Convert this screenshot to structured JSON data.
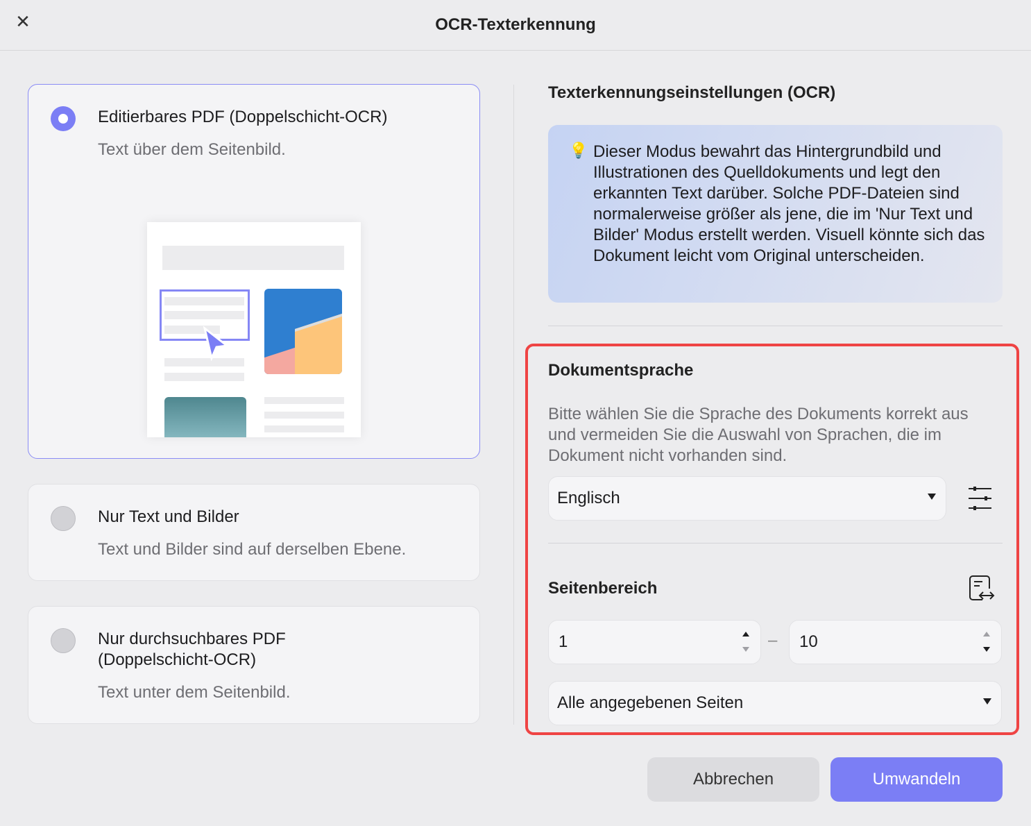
{
  "header": {
    "title": "OCR-Texterkennung",
    "close_icon": "close-icon"
  },
  "modes": [
    {
      "title": "Editierbares PDF (Doppelschicht-OCR)",
      "subtitle": "Text über dem Seitenbild.",
      "selected": true
    },
    {
      "title": "Nur Text und Bilder",
      "subtitle": "Text und Bilder sind auf derselben Ebene.",
      "selected": false
    },
    {
      "title": "Nur durchsuchbares PDF (Doppelschicht-OCR)",
      "subtitle": "Text unter dem Seitenbild.",
      "selected": false
    }
  ],
  "settings": {
    "heading": "Texterkennungseinstellungen (OCR)",
    "tip_icon": "lightbulb-icon",
    "tip": "Dieser Modus bewahrt das Hintergrundbild und Illustrationen des Quelldokuments und legt den erkannten Text darüber. Solche PDF-Dateien sind normalerweise größer als jene, die im 'Nur Text und Bilder' Modus erstellt werden. Visuell könnte sich das Dokument leicht vom Original unterscheiden.",
    "language": {
      "heading": "Dokumentsprache",
      "hint": "Bitte wählen Sie die Sprache des Dokuments korrekt aus und vermeiden Sie die Auswahl von Sprachen, die im Dokument nicht vorhanden sind.",
      "selected": "Englisch"
    },
    "range": {
      "heading": "Seitenbereich",
      "from": "1",
      "separator": "–",
      "to": "10",
      "pages_option": "Alle angegebenen Seiten"
    }
  },
  "buttons": {
    "cancel": "Abbrechen",
    "convert": "Umwandeln"
  },
  "colors": {
    "accent": "#7b7ef5",
    "highlight": "#ef4444"
  }
}
